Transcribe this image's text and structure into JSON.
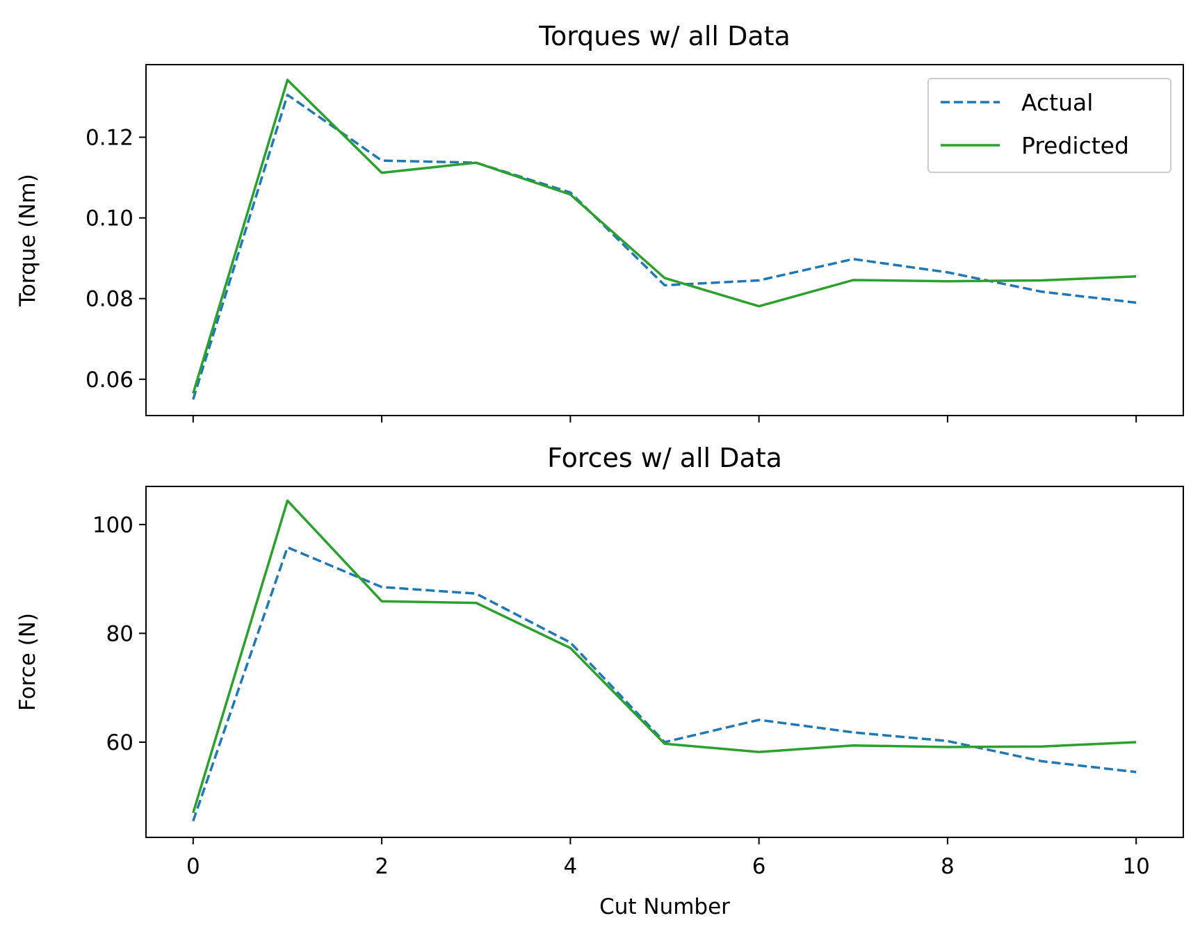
{
  "chart_data": [
    {
      "type": "line",
      "title": "Torques w/ all Data",
      "xlabel": "",
      "ylabel": "Torque (Nm)",
      "x": [
        0,
        1,
        2,
        3,
        4,
        5,
        6,
        7,
        8,
        9,
        10
      ],
      "xlim": [
        -0.5,
        10.5
      ],
      "ylim": [
        0.051,
        0.138
      ],
      "xticks": [
        0,
        2,
        4,
        6,
        8,
        10
      ],
      "xtick_labels_visible": false,
      "yticks": [
        0.06,
        0.08,
        0.1,
        0.12
      ],
      "ytick_labels": [
        "0.06",
        "0.08",
        "0.10",
        "0.12"
      ],
      "legend": "top-right",
      "grid": false,
      "series": [
        {
          "name": "Actual",
          "style": "dashed",
          "color": "#1f77b4",
          "values": [
            0.055,
            0.1305,
            0.1142,
            0.1137,
            0.1063,
            0.0833,
            0.0845,
            0.0898,
            0.0865,
            0.0817,
            0.079
          ]
        },
        {
          "name": "Predicted",
          "style": "solid",
          "color": "#2ca02c",
          "values": [
            0.0565,
            0.1342,
            0.1112,
            0.1137,
            0.1058,
            0.0851,
            0.0781,
            0.0846,
            0.0843,
            0.0845,
            0.0855
          ]
        }
      ]
    },
    {
      "type": "line",
      "title": "Forces w/ all Data",
      "xlabel": "Cut Number",
      "ylabel": "Force (N)",
      "x": [
        0,
        1,
        2,
        3,
        4,
        5,
        6,
        7,
        8,
        9,
        10
      ],
      "xlim": [
        -0.5,
        10.5
      ],
      "ylim": [
        42.5,
        107
      ],
      "xticks": [
        0,
        2,
        4,
        6,
        8,
        10
      ],
      "xtick_labels": [
        "0",
        "2",
        "4",
        "6",
        "8",
        "10"
      ],
      "yticks": [
        60,
        80,
        100
      ],
      "ytick_labels": [
        "60",
        "80",
        "100"
      ],
      "grid": false,
      "series": [
        {
          "name": "Actual",
          "style": "dashed",
          "color": "#1f77b4",
          "values": [
            45.5,
            95.8,
            88.5,
            87.3,
            78.3,
            60.0,
            64.1,
            61.8,
            60.2,
            56.5,
            54.5
          ]
        },
        {
          "name": "Predicted",
          "style": "solid",
          "color": "#2ca02c",
          "values": [
            47.0,
            104.4,
            85.9,
            85.6,
            77.3,
            59.7,
            58.2,
            59.4,
            59.1,
            59.2,
            60.0
          ]
        }
      ]
    }
  ]
}
